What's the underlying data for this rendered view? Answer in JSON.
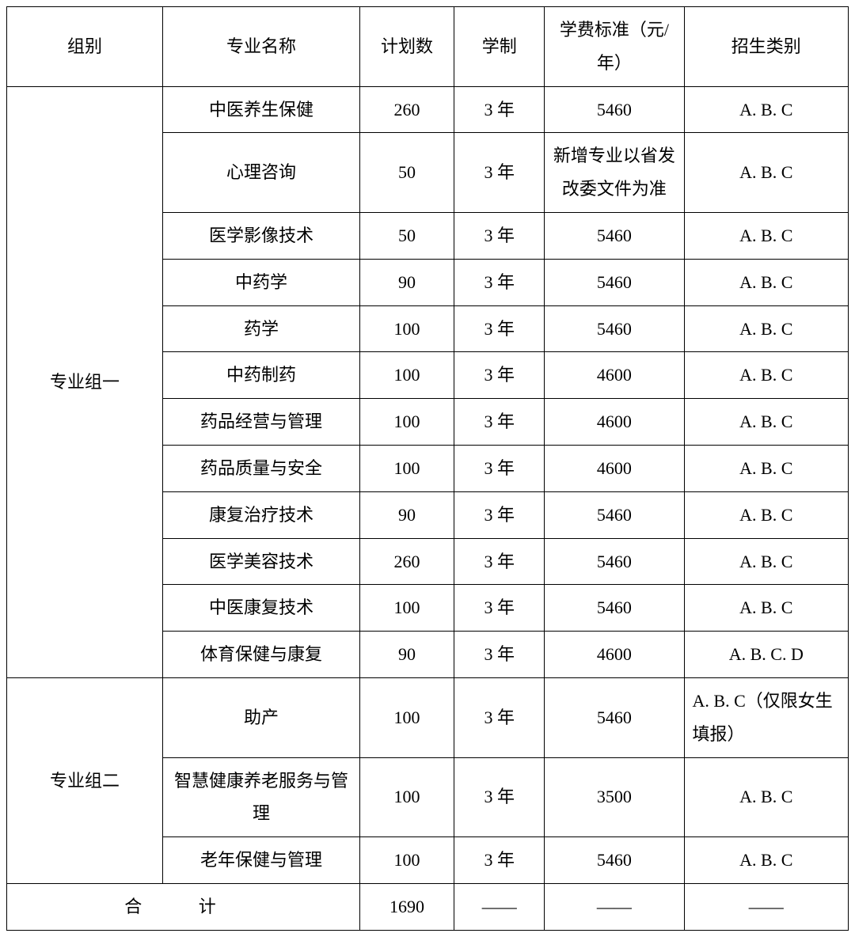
{
  "headers": {
    "group": "组别",
    "major": "专业名称",
    "plan": "计划数",
    "duration": "学制",
    "fee": "学费标准（元/年）",
    "category": "招生类别"
  },
  "groups": [
    {
      "name": "专业组一",
      "rows": [
        {
          "major": "中医养生保健",
          "plan": "260",
          "duration": "3 年",
          "fee": "5460",
          "category": "A. B. C"
        },
        {
          "major": "心理咨询",
          "plan": "50",
          "duration": "3 年",
          "fee": "新增专业以省发改委文件为准",
          "category": "A. B. C"
        },
        {
          "major": "医学影像技术",
          "plan": "50",
          "duration": "3 年",
          "fee": "5460",
          "category": "A. B. C"
        },
        {
          "major": "中药学",
          "plan": "90",
          "duration": "3 年",
          "fee": "5460",
          "category": "A. B. C"
        },
        {
          "major": "药学",
          "plan": "100",
          "duration": "3 年",
          "fee": "5460",
          "category": "A. B. C"
        },
        {
          "major": "中药制药",
          "plan": "100",
          "duration": "3 年",
          "fee": "4600",
          "category": "A. B. C"
        },
        {
          "major": "药品经营与管理",
          "plan": "100",
          "duration": "3 年",
          "fee": "4600",
          "category": "A. B. C"
        },
        {
          "major": "药品质量与安全",
          "plan": "100",
          "duration": "3 年",
          "fee": "4600",
          "category": "A. B. C"
        },
        {
          "major": "康复治疗技术",
          "plan": "90",
          "duration": "3 年",
          "fee": "5460",
          "category": "A. B. C"
        },
        {
          "major": "医学美容技术",
          "plan": "260",
          "duration": "3 年",
          "fee": "5460",
          "category": "A. B. C"
        },
        {
          "major": "中医康复技术",
          "plan": "100",
          "duration": "3 年",
          "fee": "5460",
          "category": "A. B. C"
        },
        {
          "major": "体育保健与康复",
          "plan": "90",
          "duration": "3 年",
          "fee": "4600",
          "category": "A. B. C. D"
        }
      ]
    },
    {
      "name": "专业组二",
      "rows": [
        {
          "major": "助产",
          "plan": "100",
          "duration": "3 年",
          "fee": "5460",
          "category": "A. B. C（仅限女生填报）",
          "cat_left": true
        },
        {
          "major": "智慧健康养老服务与管理",
          "plan": "100",
          "duration": "3 年",
          "fee": "3500",
          "category": "A. B. C"
        },
        {
          "major": "老年保健与管理",
          "plan": "100",
          "duration": "3 年",
          "fee": "5460",
          "category": "A. B. C"
        }
      ]
    }
  ],
  "total": {
    "label": "合  计",
    "plan": "1690",
    "duration": "——",
    "fee": "——",
    "category": "——"
  }
}
